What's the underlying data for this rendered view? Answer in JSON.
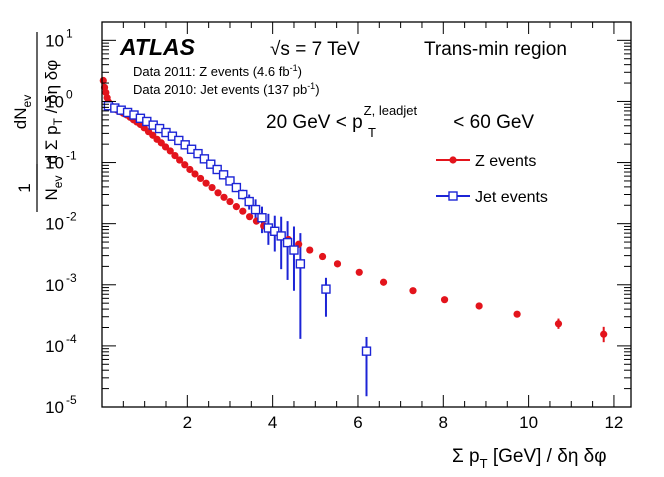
{
  "chart_data": {
    "type": "scatter",
    "title": "Trans-min region",
    "experiment": "ATLAS",
    "energy": "√s = 7 TeV",
    "data_notes": [
      "Data 2011: Z events (4.6 fb",
      "Data 2010: Jet events (137 pb"
    ],
    "lumi_units": [
      "fb",
      "pb"
    ],
    "lumi_exponent": "-1",
    "cut": {
      "pre": "20 GeV < p",
      "sub": "T",
      "sup": "Z, leadjet",
      "post": " < 60 GeV"
    },
    "xlabel": "Σ p_T [GeV] / δη δφ",
    "ylabel": "1/N_ev dN_ev / d Σ p_T / δη δφ",
    "xlim": [
      0,
      12.4
    ],
    "ylim_log10": [
      -5,
      1.3
    ],
    "legend_position": "top-right",
    "xticks": [
      2,
      4,
      6,
      8,
      10,
      12
    ],
    "yticks": [
      -5,
      -4,
      -3,
      -2,
      -1,
      0,
      1
    ],
    "series": [
      {
        "name": "Z events",
        "color": "#e3141c",
        "marker": "filled-circle",
        "x": [
          0.03,
          0.06,
          0.09,
          0.12,
          0.15,
          0.18,
          0.21,
          0.25,
          0.3,
          0.36,
          0.43,
          0.5,
          0.58,
          0.66,
          0.74,
          0.82,
          0.9,
          0.99,
          1.09,
          1.19,
          1.29,
          1.39,
          1.49,
          1.6,
          1.71,
          1.82,
          1.94,
          2.06,
          2.18,
          2.31,
          2.44,
          2.58,
          2.72,
          2.86,
          3.0,
          3.15,
          3.3,
          3.46,
          3.62,
          3.79,
          3.97,
          4.16,
          4.37,
          4.61,
          4.87,
          5.17,
          5.52,
          6.03,
          6.6,
          7.29,
          8.03,
          8.84,
          9.73,
          10.7,
          11.76
        ],
        "y": [
          2.2,
          1.7,
          1.4,
          1.15,
          0.98,
          0.9,
          0.85,
          0.8,
          0.75,
          0.72,
          0.68,
          0.64,
          0.6,
          0.55,
          0.5,
          0.46,
          0.42,
          0.37,
          0.32,
          0.28,
          0.24,
          0.21,
          0.18,
          0.155,
          0.13,
          0.11,
          0.092,
          0.077,
          0.065,
          0.055,
          0.046,
          0.039,
          0.032,
          0.027,
          0.023,
          0.019,
          0.016,
          0.013,
          0.011,
          0.0092,
          0.0078,
          0.0066,
          0.0055,
          0.0046,
          0.0037,
          0.0029,
          0.0022,
          0.0016,
          0.0011,
          0.0008,
          0.00057,
          0.00045,
          0.00033,
          0.00023,
          0.000155
        ],
        "y_err_low": [
          0,
          0,
          0,
          0,
          0,
          0,
          0,
          0,
          0,
          0,
          0,
          0,
          0,
          0,
          0,
          0,
          0,
          0,
          0,
          0,
          0,
          0,
          0,
          0,
          0,
          0,
          0,
          0,
          0,
          0,
          0,
          0,
          0,
          0,
          0,
          0,
          0,
          0,
          0,
          0,
          0,
          0,
          0,
          0,
          0,
          0,
          0,
          0,
          0,
          0,
          0,
          0,
          2e-05,
          4e-05,
          4e-05
        ],
        "y_err_high": [
          0,
          0,
          0,
          0,
          0,
          0,
          0,
          0,
          0,
          0,
          0,
          0,
          0,
          0,
          0,
          0,
          0,
          0,
          0,
          0,
          0,
          0,
          0,
          0,
          0,
          0,
          0,
          0,
          0,
          0,
          0,
          0,
          0,
          0,
          0,
          0,
          0,
          0,
          0,
          0,
          0,
          0,
          0,
          0,
          0,
          0,
          0,
          0,
          0,
          0,
          0,
          0,
          3e-05,
          5e-05,
          5e-05
        ]
      },
      {
        "name": "Jet events",
        "color": "#1c24d6",
        "marker": "open-square",
        "x": [
          0.15,
          0.3,
          0.45,
          0.6,
          0.75,
          0.9,
          1.05,
          1.2,
          1.35,
          1.5,
          1.65,
          1.8,
          1.95,
          2.1,
          2.25,
          2.4,
          2.55,
          2.7,
          2.85,
          3.0,
          3.15,
          3.3,
          3.45,
          3.6,
          3.75,
          3.9,
          4.05,
          4.2,
          4.35,
          4.5,
          4.65,
          5.25,
          6.2
        ],
        "y": [
          0.85,
          0.78,
          0.72,
          0.66,
          0.6,
          0.53,
          0.47,
          0.41,
          0.36,
          0.31,
          0.27,
          0.23,
          0.195,
          0.165,
          0.14,
          0.115,
          0.094,
          0.077,
          0.063,
          0.05,
          0.039,
          0.03,
          0.023,
          0.017,
          0.0125,
          0.0085,
          0.0075,
          0.0063,
          0.0049,
          0.0037,
          0.0022,
          0.00085,
          8.2e-05
        ],
        "y_err_low": [
          0,
          0,
          0,
          0,
          0,
          0,
          0,
          0,
          0,
          0,
          0,
          0,
          0,
          0,
          0,
          0,
          0,
          0,
          0,
          0,
          0.004,
          0.005,
          0.006,
          0.007,
          0.0055,
          0.004,
          0.004,
          0.0045,
          0.0037,
          0.0029,
          0.00207,
          0.00055,
          6.7e-05
        ],
        "y_err_high": [
          0,
          0,
          0,
          0,
          0,
          0,
          0,
          0,
          0,
          0,
          0,
          0,
          0,
          0,
          0,
          0,
          0,
          0,
          0,
          0,
          0.005,
          0.006,
          0.007,
          0.008,
          0.0065,
          0.006,
          0.006,
          0.0067,
          0.0061,
          0.0053,
          0.0048,
          0.00045,
          5.8e-05
        ]
      }
    ]
  }
}
